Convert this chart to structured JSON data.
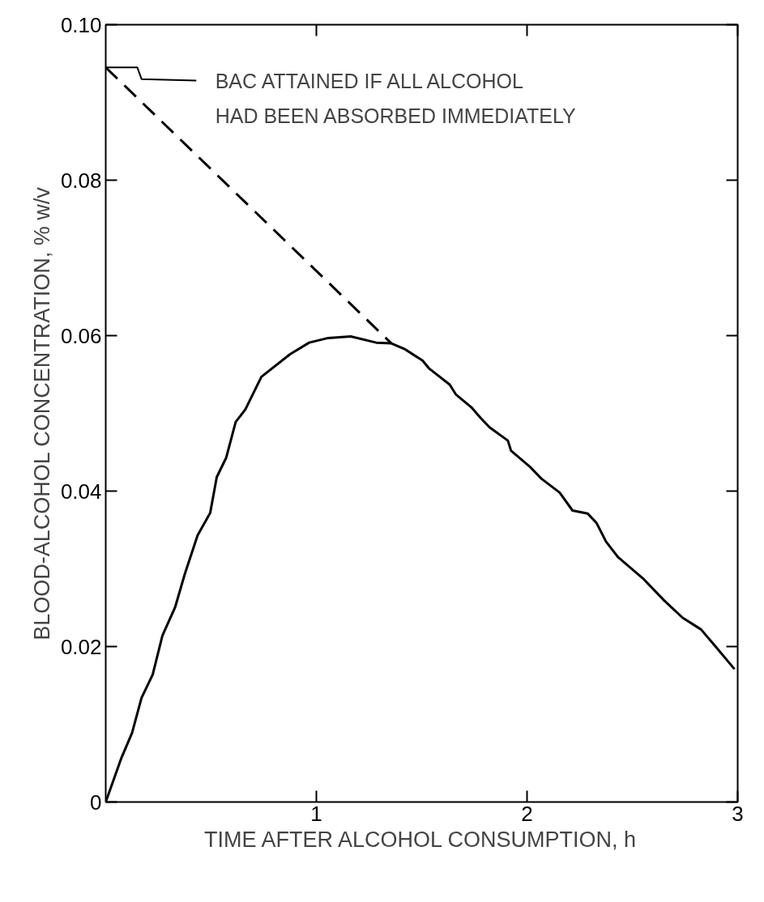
{
  "chart_data": {
    "type": "line",
    "xlabel": "TIME AFTER ALCOHOL CONSUMPTION, h",
    "ylabel": "BLOOD-ALCOHOL CONCENTRATION, % w/v",
    "xlim": [
      0,
      3
    ],
    "ylim": [
      0,
      0.1
    ],
    "xticks": [
      1,
      2,
      3
    ],
    "yticks": [
      0,
      0.02,
      0.04,
      0.06,
      0.08,
      {
        "value": 0.1,
        "label": "0.10"
      }
    ],
    "grid": false,
    "marker": "none",
    "annotations": [
      {
        "text": "BAC  ATTAINED  IF  ALL  ALCOHOL\nHAD  BEEN  ABSORBED  IMMEDIATELY",
        "x": 0,
        "y": 0.0945
      }
    ],
    "series": [
      {
        "color": "#000000",
        "line_style": "solid",
        "x": [
          0,
          0.072,
          0.125,
          0.17,
          0.223,
          0.269,
          0.33,
          0.375,
          0.436,
          0.496,
          0.527,
          0.572,
          0.617,
          0.663,
          0.739,
          0.875,
          0.966,
          1.057,
          1.163,
          1.284,
          1.356,
          1.417,
          1.504,
          1.534,
          1.633,
          1.663,
          1.735,
          1.78,
          1.822,
          1.909,
          1.924,
          2.011,
          2.068,
          2.155,
          2.216,
          2.288,
          2.33,
          2.375,
          2.432,
          2.549,
          2.652,
          2.739,
          2.826,
          2.883,
          2.985
        ],
        "values": [
          0,
          0.0055,
          0.0089,
          0.0134,
          0.0164,
          0.0214,
          0.0251,
          0.0293,
          0.0343,
          0.0372,
          0.0418,
          0.0443,
          0.0489,
          0.0505,
          0.0547,
          0.0576,
          0.0591,
          0.0597,
          0.0599,
          0.0591,
          0.059,
          0.0583,
          0.0568,
          0.0558,
          0.0537,
          0.0524,
          0.0508,
          0.0494,
          0.0482,
          0.0465,
          0.0452,
          0.0432,
          0.0416,
          0.0398,
          0.0375,
          0.0371,
          0.0359,
          0.0335,
          0.0315,
          0.0288,
          0.0259,
          0.0237,
          0.0222,
          0.0204,
          0.0171
        ]
      },
      {
        "color": "#000000",
        "line_style": "dashed",
        "x": [
          0,
          1.356
        ],
        "values": [
          0.0945,
          0.059
        ]
      }
    ]
  }
}
